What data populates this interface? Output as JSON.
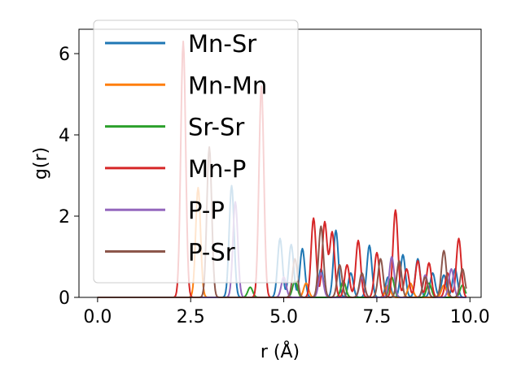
{
  "chart_data": {
    "type": "line",
    "title": "",
    "xlabel": "r (Å)",
    "ylabel": "g(r)",
    "xlim": [
      -0.5,
      10.3
    ],
    "ylim": [
      0,
      6.6
    ],
    "xticks": [
      0.0,
      2.5,
      5.0,
      7.5,
      10.0
    ],
    "xtick_labels": [
      "0.0",
      "2.5",
      "5.0",
      "7.5",
      "10.0"
    ],
    "yticks": [
      0,
      2,
      4,
      6
    ],
    "ytick_labels": [
      "0",
      "2",
      "4",
      "6"
    ],
    "grid": false,
    "legend_position": "upper-left",
    "series": [
      {
        "name": "Mn-Sr",
        "color": "#1f77b4",
        "peaks": [
          [
            3.6,
            2.75
          ],
          [
            4.9,
            1.45
          ],
          [
            5.2,
            1.3
          ],
          [
            5.5,
            1.2
          ],
          [
            6.0,
            0.7
          ],
          [
            6.4,
            1.65
          ],
          [
            6.8,
            0.6
          ],
          [
            7.3,
            1.28
          ],
          [
            7.8,
            0.5
          ],
          [
            8.2,
            1.05
          ],
          [
            8.6,
            0.95
          ],
          [
            9.0,
            0.6
          ],
          [
            9.3,
            0.55
          ],
          [
            9.6,
            0.7
          ]
        ]
      },
      {
        "name": "Mn-Mn",
        "color": "#ff7f0e",
        "peaks": [
          [
            2.7,
            2.7
          ],
          [
            5.6,
            0.35
          ],
          [
            6.6,
            0.4
          ],
          [
            7.8,
            0.3
          ],
          [
            8.4,
            0.35
          ],
          [
            9.3,
            0.3
          ]
        ]
      },
      {
        "name": "Sr-Sr",
        "color": "#2ca02c",
        "peaks": [
          [
            4.1,
            0.25
          ],
          [
            5.3,
            0.4
          ],
          [
            6.6,
            0.4
          ],
          [
            7.9,
            0.5
          ],
          [
            8.9,
            0.35
          ],
          [
            9.8,
            0.3
          ]
        ]
      },
      {
        "name": "Mn-P",
        "color": "#d62728",
        "peaks": [
          [
            2.3,
            6.3
          ],
          [
            4.4,
            5.2
          ],
          [
            5.8,
            1.95
          ],
          [
            6.1,
            1.85
          ],
          [
            6.3,
            1.6
          ],
          [
            6.7,
            0.8
          ],
          [
            7.0,
            1.4
          ],
          [
            7.5,
            1.1
          ],
          [
            8.0,
            2.15
          ],
          [
            8.3,
            0.7
          ],
          [
            8.6,
            0.9
          ],
          [
            8.9,
            0.85
          ],
          [
            9.4,
            0.6
          ],
          [
            9.7,
            1.45
          ]
        ]
      },
      {
        "name": "P-P",
        "color": "#9467bd",
        "peaks": [
          [
            3.7,
            2.35
          ],
          [
            5.0,
            0.5
          ],
          [
            6.0,
            0.6
          ],
          [
            7.1,
            0.5
          ],
          [
            7.9,
            1.0
          ],
          [
            8.8,
            0.55
          ],
          [
            9.5,
            0.7
          ]
        ]
      },
      {
        "name": "P-Sr",
        "color": "#8c564b",
        "peaks": [
          [
            3.0,
            3.7
          ],
          [
            5.3,
            0.95
          ],
          [
            6.0,
            1.75
          ],
          [
            6.5,
            0.8
          ],
          [
            7.1,
            0.6
          ],
          [
            7.6,
            0.95
          ],
          [
            8.1,
            0.9
          ],
          [
            8.8,
            0.5
          ],
          [
            9.3,
            1.15
          ],
          [
            9.8,
            0.7
          ]
        ]
      }
    ]
  }
}
